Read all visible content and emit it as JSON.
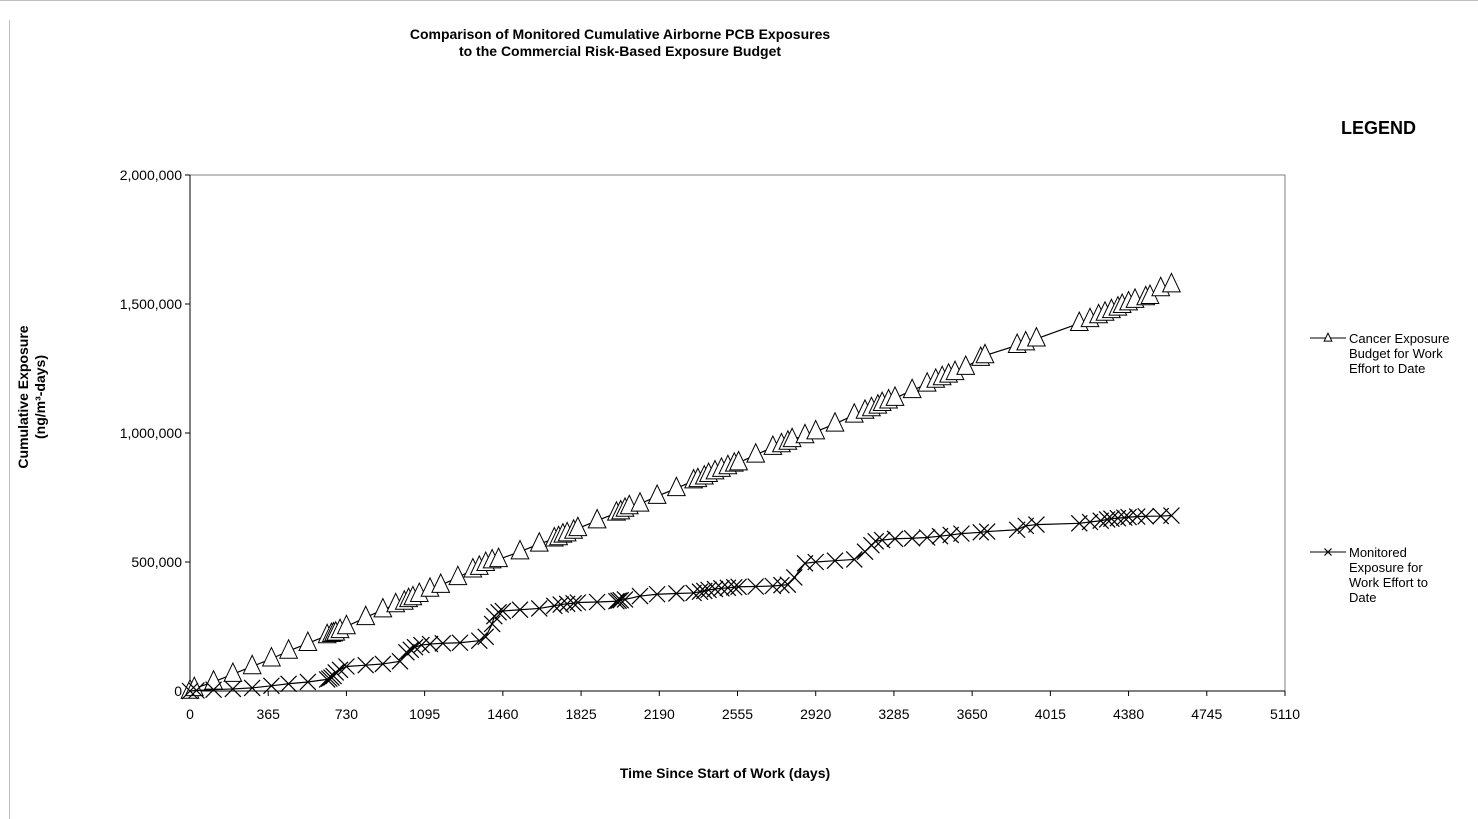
{
  "chart_data": {
    "type": "line",
    "title_line1": "Comparison of Monitored Cumulative Airborne PCB Exposures",
    "title_line2": "to the Commercial Risk-Based Exposure Budget",
    "xlabel": "Time Since Start of Work  (days)",
    "ylabel_line1": "Cumulative Exposure",
    "ylabel_line2": "(ng/m³-days)",
    "legend_title": "LEGEND",
    "legend_position": "right",
    "grid": false,
    "xlim": [
      0,
      5110
    ],
    "ylim": [
      0,
      2000000
    ],
    "x_ticks": [
      0,
      365,
      730,
      1095,
      1460,
      1825,
      2190,
      2555,
      2920,
      3285,
      3650,
      4015,
      4380,
      4745,
      5110
    ],
    "x_tick_labels": [
      "0",
      "365",
      "730",
      "1095",
      "1460",
      "1825",
      "2190",
      "2555",
      "2920",
      "3285",
      "3650",
      "4015",
      "4380",
      "4745",
      "5110"
    ],
    "y_ticks": [
      0,
      500000,
      1000000,
      1500000,
      2000000
    ],
    "y_tick_labels": [
      "0",
      "500,000",
      "1,000,000",
      "1,500,000",
      "2,000,000"
    ],
    "series": [
      {
        "name": "Cancer Exposure Budget for Work Effort to Date",
        "legend_lines": [
          "Cancer Exposure",
          "Budget for Work",
          "Effort to Date"
        ],
        "marker": "triangle",
        "x": [
          0,
          20,
          110,
          200,
          290,
          380,
          460,
          550,
          640,
          660,
          670,
          680,
          700,
          730,
          820,
          900,
          960,
          1000,
          1020,
          1040,
          1070,
          1120,
          1170,
          1250,
          1320,
          1350,
          1380,
          1410,
          1440,
          1540,
          1630,
          1700,
          1720,
          1740,
          1760,
          1790,
          1810,
          1900,
          1990,
          2010,
          2030,
          2050,
          2100,
          2180,
          2270,
          2350,
          2370,
          2400,
          2420,
          2450,
          2480,
          2510,
          2540,
          2560,
          2640,
          2720,
          2760,
          2790,
          2810,
          2870,
          2920,
          3010,
          3100,
          3150,
          3180,
          3210,
          3230,
          3260,
          3290,
          3370,
          3440,
          3480,
          3510,
          3540,
          3570,
          3620,
          3690,
          3710,
          3860,
          3900,
          3950,
          4150,
          4200,
          4240,
          4270,
          4300,
          4330,
          4350,
          4380,
          4410,
          4460,
          4480,
          4530,
          4580
        ],
        "values": [
          0,
          10000,
          35000,
          65000,
          95000,
          125000,
          155000,
          185000,
          215000,
          220000,
          222000,
          225000,
          235000,
          250000,
          285000,
          315000,
          335000,
          345000,
          355000,
          362000,
          375000,
          395000,
          410000,
          440000,
          470000,
          480000,
          495000,
          505000,
          510000,
          540000,
          570000,
          590000,
          595000,
          605000,
          610000,
          620000,
          630000,
          660000,
          690000,
          695000,
          705000,
          715000,
          725000,
          755000,
          785000,
          815000,
          820000,
          830000,
          840000,
          850000,
          860000,
          870000,
          880000,
          885000,
          915000,
          945000,
          955000,
          965000,
          975000,
          990000,
          1005000,
          1035000,
          1070000,
          1085000,
          1095000,
          1105000,
          1115000,
          1125000,
          1135000,
          1165000,
          1190000,
          1205000,
          1215000,
          1225000,
          1235000,
          1255000,
          1290000,
          1300000,
          1340000,
          1350000,
          1365000,
          1425000,
          1440000,
          1455000,
          1465000,
          1475000,
          1485000,
          1495000,
          1505000,
          1515000,
          1525000,
          1530000,
          1560000,
          1575000
        ]
      },
      {
        "name": "Monitored Exposure for Work Effort to Date",
        "legend_lines": [
          "Monitored",
          "Exposure for",
          "Work Effort to",
          "Date"
        ],
        "marker": "x",
        "x": [
          0,
          30,
          110,
          200,
          290,
          380,
          460,
          550,
          640,
          650,
          660,
          670,
          680,
          700,
          730,
          820,
          900,
          980,
          1010,
          1030,
          1050,
          1080,
          1120,
          1180,
          1260,
          1350,
          1380,
          1410,
          1420,
          1440,
          1460,
          1540,
          1630,
          1700,
          1730,
          1760,
          1790,
          1810,
          1900,
          1990,
          2000,
          2010,
          2030,
          2100,
          2180,
          2270,
          2350,
          2380,
          2400,
          2420,
          2450,
          2480,
          2510,
          2540,
          2560,
          2640,
          2720,
          2760,
          2790,
          2820,
          2870,
          2920,
          3010,
          3100,
          3150,
          3180,
          3200,
          3230,
          3290,
          3370,
          3440,
          3500,
          3550,
          3600,
          3690,
          3720,
          3860,
          3900,
          3950,
          4150,
          4200,
          4250,
          4280,
          4300,
          4330,
          4360,
          4380,
          4420,
          4460,
          4530,
          4580
        ],
        "values": [
          0,
          2000,
          5000,
          8000,
          12000,
          20000,
          28000,
          35000,
          45000,
          48000,
          52000,
          58000,
          72000,
          82000,
          95000,
          100000,
          105000,
          115000,
          150000,
          160000,
          170000,
          178000,
          182000,
          185000,
          187000,
          195000,
          210000,
          260000,
          290000,
          305000,
          310000,
          315000,
          320000,
          330000,
          335000,
          338000,
          340000,
          343000,
          345000,
          348000,
          350000,
          352000,
          355000,
          368000,
          375000,
          378000,
          380000,
          385000,
          388000,
          392000,
          395000,
          398000,
          400000,
          402000,
          404000,
          405000,
          407000,
          410000,
          412000,
          440000,
          495000,
          500000,
          505000,
          510000,
          540000,
          565000,
          580000,
          585000,
          590000,
          592000,
          595000,
          600000,
          605000,
          610000,
          615000,
          618000,
          625000,
          640000,
          645000,
          650000,
          655000,
          660000,
          665000,
          668000,
          670000,
          672000,
          674000,
          676000,
          677000,
          678000,
          680000
        ]
      }
    ]
  }
}
